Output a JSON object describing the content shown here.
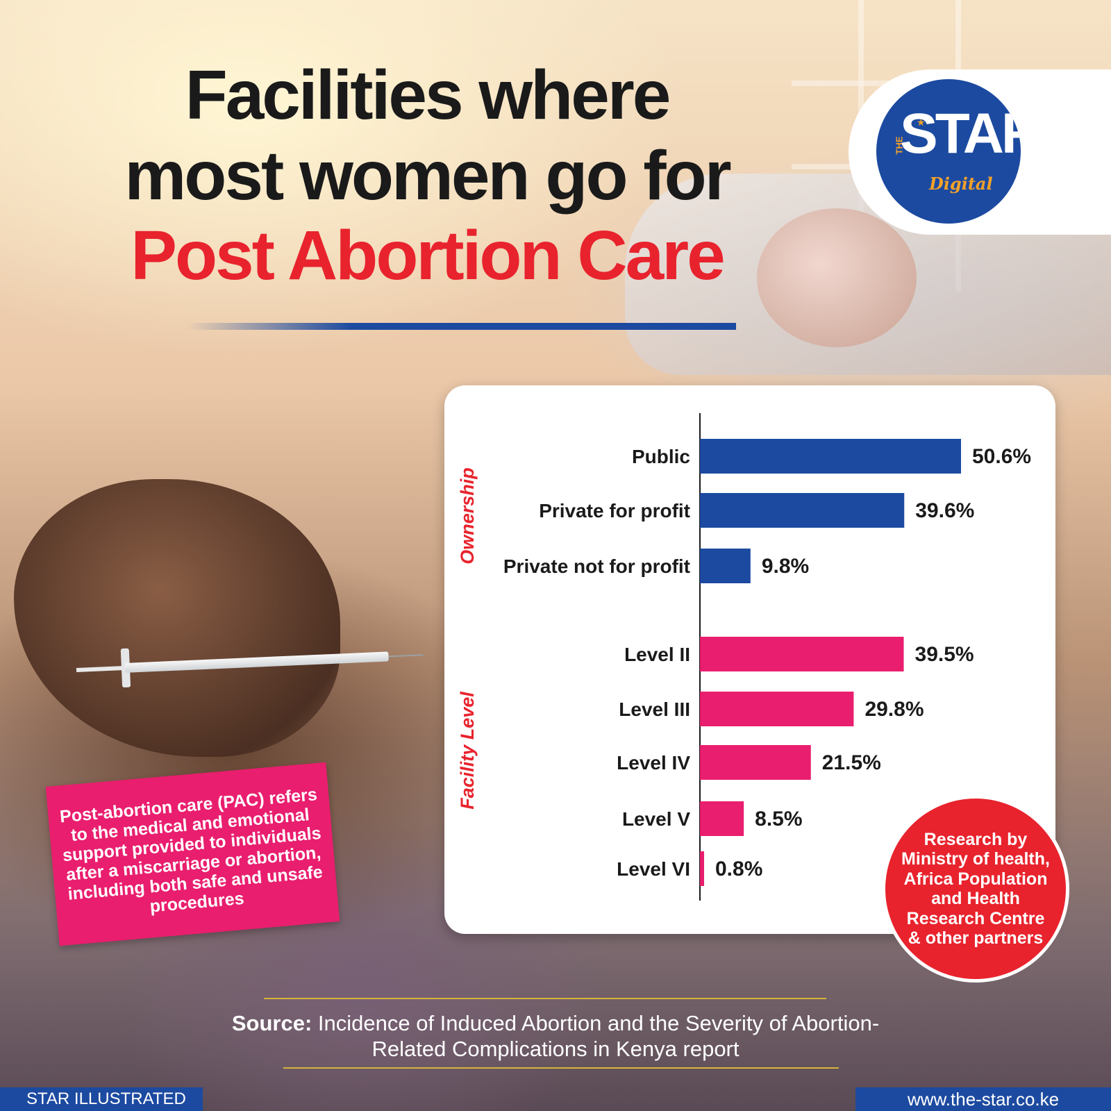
{
  "title": {
    "line1": "Facilities where",
    "line2": "most women go for",
    "line3": "Post Abortion Care"
  },
  "logo": {
    "the": "THE",
    "star": "STAR",
    "digital": "Digital",
    "colors": {
      "circle": "#1c4aa0",
      "accent": "#f2a12a"
    }
  },
  "chart_data": {
    "type": "bar",
    "orientation": "horizontal",
    "unit": "%",
    "groups": [
      {
        "name": "Ownership",
        "color": "#1c4aa0",
        "categories": [
          "Public",
          "Private for profit",
          "Private not for profit"
        ],
        "values": [
          50.6,
          39.6,
          9.8
        ],
        "labels": [
          "50.6%",
          "39.6%",
          "9.8%"
        ]
      },
      {
        "name": "Facility Level",
        "color": "#e91e6e",
        "categories": [
          "Level II",
          "Level III",
          "Level IV",
          "Level V",
          "Level VI"
        ],
        "values": [
          39.5,
          29.8,
          21.5,
          8.5,
          0.8
        ],
        "labels": [
          "39.5%",
          "29.8%",
          "21.5%",
          "8.5%",
          "0.8%"
        ]
      }
    ],
    "xlim": [
      0,
      50.6
    ],
    "grid": false,
    "legend": "none"
  },
  "pac_note": "Post-abortion care (PAC) refers to the medical and emotional support provided to individuals after a miscarriage or abortion, including both safe and unsafe procedures",
  "research_note": "Research by Ministry of health, Africa Population and Health Research Centre & other partners",
  "source": {
    "label": "Source:",
    "text": "Incidence of Induced Abortion and the Severity of Abortion-Related Complications in Kenya report"
  },
  "footer": {
    "left": "STAR ILLUSTRATED",
    "right": "www.the-star.co.ke"
  },
  "colors": {
    "title_dark": "#1a1a1a",
    "title_red": "#e8232d",
    "brand_blue": "#1c4aa0",
    "pink": "#e91e6e"
  }
}
